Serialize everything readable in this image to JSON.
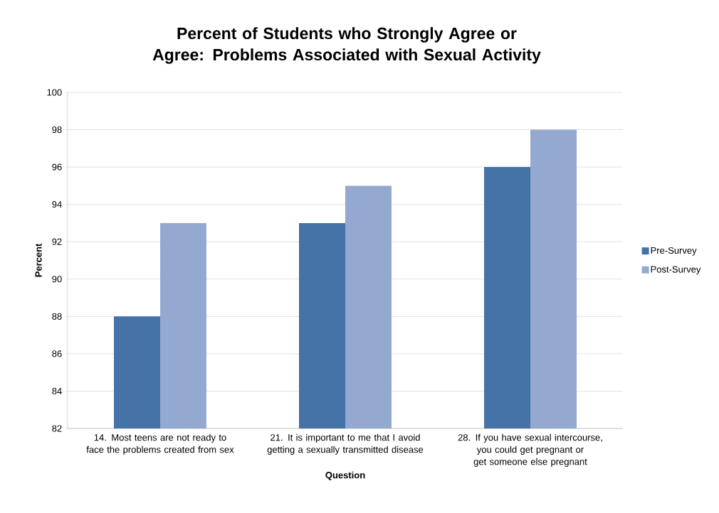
{
  "chart_data": {
    "type": "bar",
    "title": "Percent of Students who Strongly Agree or Agree: Problems Associated with Sexual Activity",
    "xlabel": "Question",
    "ylabel": "Percent",
    "categories": [
      "14. Most teens are not ready to face the problems created from sex",
      "21. It is important to me that I avoid getting a sexually transmitted disease",
      "28. If you have sexual intercourse, you could get pregnant or get someone else pregnant"
    ],
    "series": [
      {
        "name": "Pre-Survey",
        "color": "#4572a7",
        "values": [
          88,
          93,
          96
        ]
      },
      {
        "name": "Post-Survey",
        "color": "#93a9d0",
        "values": [
          93,
          95,
          98
        ]
      }
    ],
    "ylim": [
      82,
      100
    ],
    "yticks": [
      82,
      84,
      86,
      88,
      90,
      92,
      94,
      96,
      98,
      100
    ],
    "grid": "y",
    "legend": "right"
  }
}
